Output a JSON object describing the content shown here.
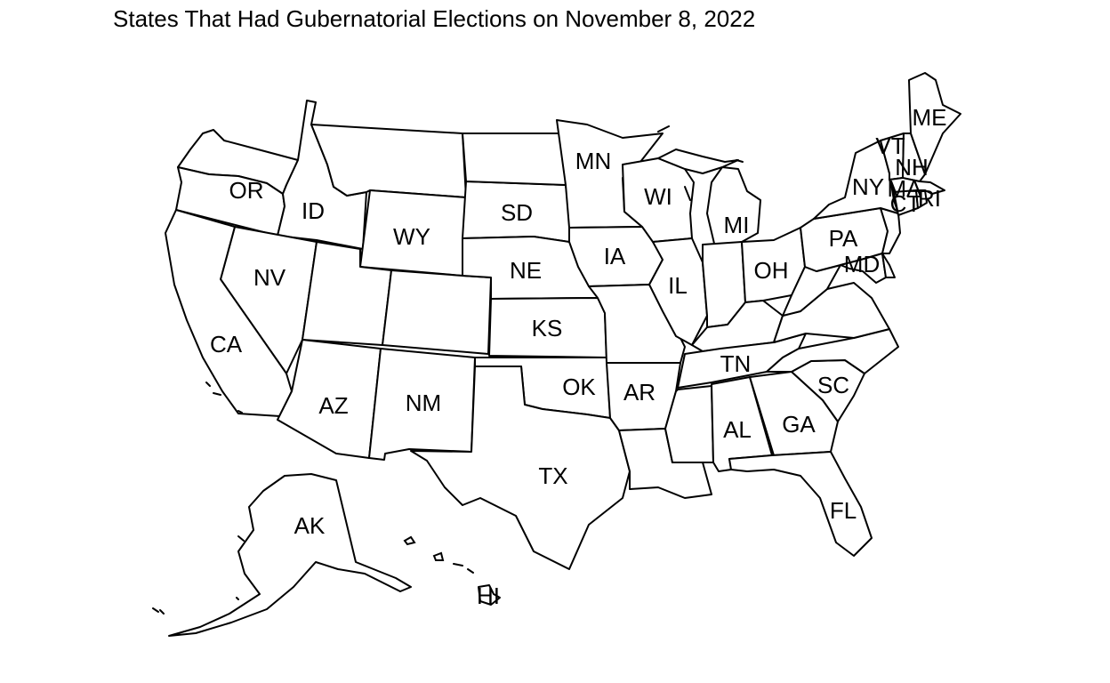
{
  "title": "States That Had Gubernatorial Elections on November 8, 2022",
  "colors": {
    "fill": "#ffffff",
    "stroke": "#000000",
    "text": "#000000"
  },
  "state_labels": {
    "OR": "OR",
    "ID": "ID",
    "WY": "WY",
    "SD": "SD",
    "MN": "MN",
    "WI": "WI",
    "MI": "MI",
    "ME": "ME",
    "VT": "VT",
    "NH": "NH",
    "NY": "NY",
    "MA": "MA",
    "CT": "CT",
    "RI": "RI",
    "PA": "PA",
    "MD": "MD",
    "OH": "OH",
    "IL": "IL",
    "IA": "IA",
    "NE": "NE",
    "NV": "NV",
    "CA": "CA",
    "KS": "KS",
    "AZ": "AZ",
    "NM": "NM",
    "OK": "OK",
    "AR": "AR",
    "TN": "TN",
    "SC": "SC",
    "GA": "GA",
    "AL": "AL",
    "TX": "TX",
    "FL": "FL",
    "AK": "AK",
    "HI": "HI"
  }
}
